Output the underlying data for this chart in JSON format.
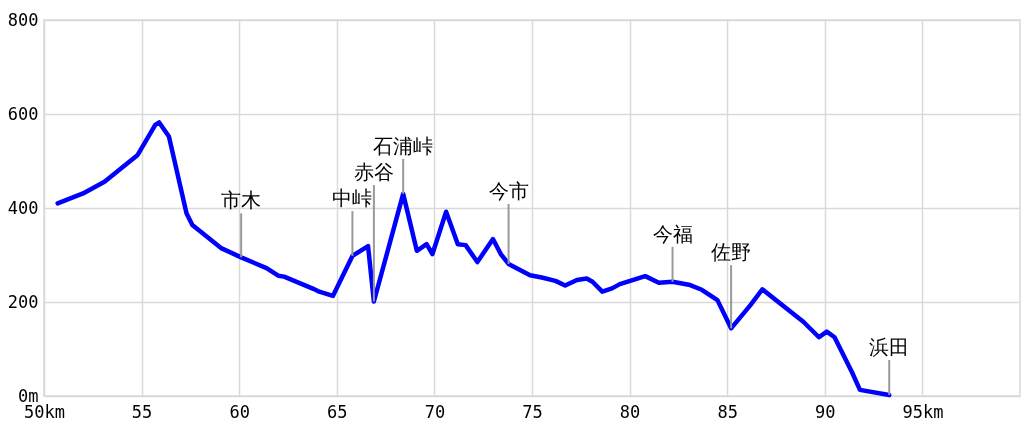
{
  "chart_data": {
    "type": "line",
    "x": [
      50.7,
      52.0,
      53.1,
      54.8,
      55.7,
      55.9,
      56.4,
      56.6,
      57.3,
      57.6,
      59.1,
      60.1,
      61.4,
      62.0,
      62.3,
      63.8,
      64.1,
      64.8,
      65.8,
      66.6,
      66.9,
      68.4,
      69.1,
      69.6,
      69.9,
      70.6,
      71.2,
      71.6,
      72.2,
      73.0,
      73.4,
      73.8,
      74.9,
      75.5,
      76.2,
      76.7,
      77.3,
      77.8,
      78.1,
      78.6,
      79.1,
      79.5,
      80.8,
      81.5,
      82.2,
      83.1,
      83.7,
      84.5,
      85.2,
      86.2,
      86.8,
      88.9,
      89.7,
      90.1,
      90.5,
      91.4,
      91.8,
      93.3
    ],
    "series": [
      {
        "color": "#0000ff",
        "values": [
          410,
          431,
          456,
          513,
          577,
          582,
          552,
          516,
          389,
          364,
          314,
          295,
          272,
          256,
          254,
          228,
          222,
          213,
          298,
          319,
          201,
          430,
          309,
          323,
          302,
          392,
          323,
          321,
          285,
          334,
          302,
          281,
          257,
          252,
          245,
          235,
          247,
          250,
          243,
          222,
          229,
          238,
          255,
          241,
          243,
          236,
          226,
          204,
          144,
          194,
          227,
          158,
          125,
          137,
          125,
          50,
          13,
          2
        ]
      }
    ],
    "xlim": [
      50,
      100
    ],
    "ylim": [
      0,
      800
    ],
    "xticks": [
      {
        "value": 50,
        "label": "50km"
      },
      55,
      60,
      65,
      70,
      75,
      80,
      85,
      90,
      {
        "value": 95,
        "label": "95km"
      }
    ],
    "yticks": [
      {
        "value": 0,
        "label": "0m"
      },
      200,
      400,
      600,
      800
    ],
    "grid": true,
    "annotations": [
      {
        "text": "市木",
        "x": 60.1,
        "y": 295
      },
      {
        "text": "中峠",
        "x": 65.8,
        "y": 298
      },
      {
        "text": "赤谷",
        "x": 66.9,
        "y": 201
      },
      {
        "text": "石浦峠",
        "x": 68.4,
        "y": 430
      },
      {
        "text": "今市",
        "x": 73.8,
        "y": 281
      },
      {
        "text": "今福",
        "x": 82.2,
        "y": 243
      },
      {
        "text": "佐野",
        "x": 85.2,
        "y": 144
      },
      {
        "text": "浜田",
        "x": 93.3,
        "y": 2
      }
    ]
  }
}
